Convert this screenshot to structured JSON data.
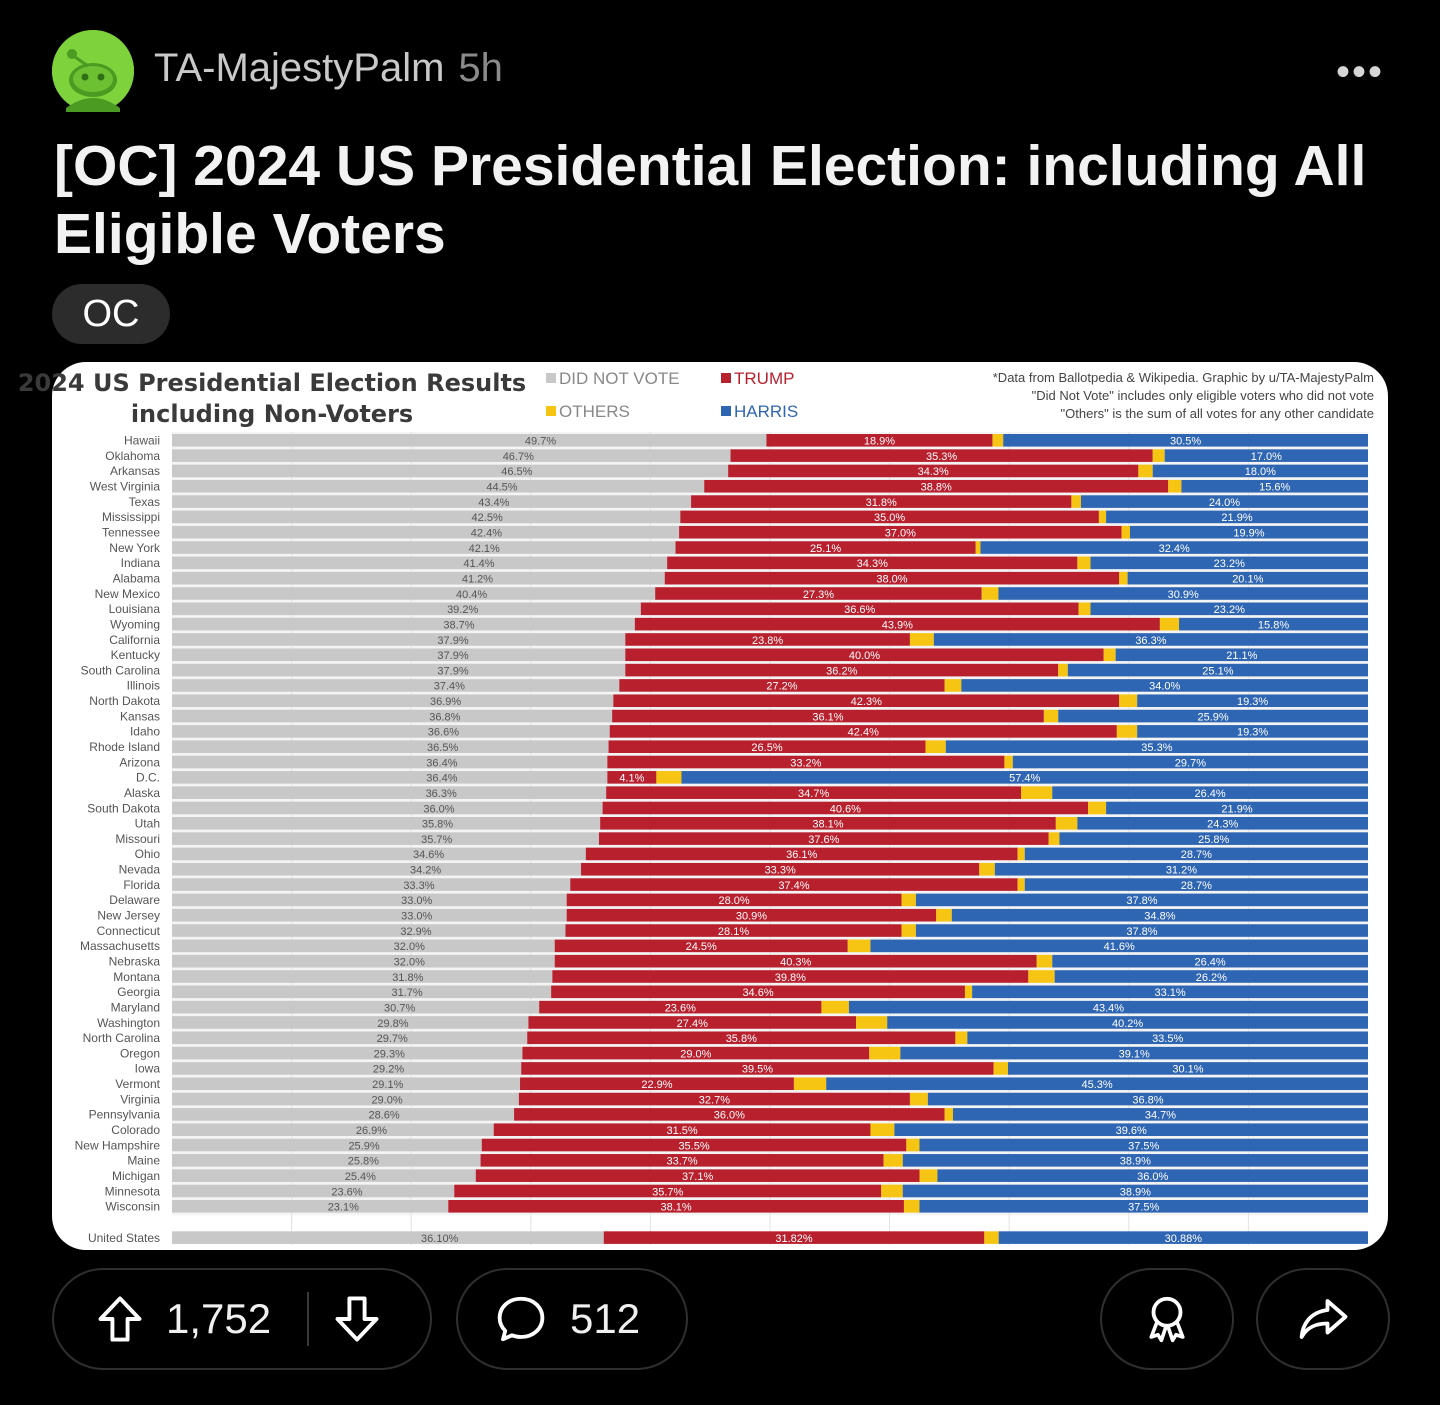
{
  "post": {
    "username": "TA-MajestyPalm",
    "age": "5h",
    "more": "•••",
    "title": "[OC] 2024 US Presidential Election: including All Eligible Voters",
    "flair": "OC"
  },
  "actions": {
    "upvotes": "1,752",
    "comments": "512"
  },
  "colors": {
    "did_not_vote": "#c8c8c8",
    "trump": "#b8202e",
    "others": "#f6c412",
    "harris": "#2f66b3"
  },
  "chart_data": {
    "type": "bar",
    "orientation": "horizontal",
    "stacked": true,
    "title_lines": [
      "2024 US Presidential Election Results",
      "including Non-Voters"
    ],
    "legend": [
      "DID NOT VOTE",
      "TRUMP",
      "OTHERS",
      "HARRIS"
    ],
    "note_lines": [
      "*Data from Ballotpedia & Wikipedia. Graphic by u/TA-MajestyPalm",
      "\"Did Not Vote\" includes only eligible voters who did not vote",
      "\"Others\" is the sum of all votes for any other candidate"
    ],
    "xlim": [
      0,
      100
    ],
    "grid": true,
    "categories": [
      "Hawaii",
      "Oklahoma",
      "Arkansas",
      "West Virginia",
      "Texas",
      "Mississippi",
      "Tennessee",
      "New York",
      "Indiana",
      "Alabama",
      "New Mexico",
      "Louisiana",
      "Wyoming",
      "California",
      "Kentucky",
      "South Carolina",
      "Illinois",
      "North Dakota",
      "Kansas",
      "Idaho",
      "Rhode Island",
      "Arizona",
      "D.C.",
      "Alaska",
      "South Dakota",
      "Utah",
      "Missouri",
      "Ohio",
      "Nevada",
      "Florida",
      "Delaware",
      "New Jersey",
      "Connecticut",
      "Massachusetts",
      "Nebraska",
      "Montana",
      "Georgia",
      "Maryland",
      "Washington",
      "North Carolina",
      "Oregon",
      "Iowa",
      "Vermont",
      "Virginia",
      "Pennsylvania",
      "Colorado",
      "New Hampshire",
      "Maine",
      "Michigan",
      "Minnesota",
      "Wisconsin"
    ],
    "series": [
      {
        "name": "DID NOT VOTE",
        "values": [
          49.7,
          46.7,
          46.5,
          44.5,
          43.4,
          42.5,
          42.4,
          42.1,
          41.4,
          41.2,
          40.4,
          39.2,
          38.7,
          37.9,
          37.9,
          37.9,
          37.4,
          36.9,
          36.8,
          36.6,
          36.5,
          36.4,
          36.4,
          36.3,
          36.0,
          35.8,
          35.7,
          34.6,
          34.2,
          33.3,
          33.0,
          33.0,
          32.9,
          32.0,
          32.0,
          31.8,
          31.7,
          30.7,
          29.8,
          29.7,
          29.3,
          29.2,
          29.1,
          29.0,
          28.6,
          26.9,
          25.9,
          25.8,
          25.4,
          23.6,
          23.1
        ]
      },
      {
        "name": "TRUMP",
        "values": [
          18.9,
          35.3,
          34.3,
          38.8,
          31.8,
          35.0,
          37.0,
          25.1,
          34.3,
          38.0,
          27.3,
          36.6,
          43.9,
          23.8,
          40.0,
          36.2,
          27.2,
          42.3,
          36.1,
          42.4,
          26.5,
          33.2,
          4.1,
          34.7,
          40.6,
          38.1,
          37.6,
          36.1,
          33.3,
          37.4,
          28.0,
          30.9,
          28.1,
          24.5,
          40.3,
          39.8,
          34.6,
          23.6,
          27.4,
          35.8,
          29.0,
          39.5,
          22.9,
          32.7,
          36.0,
          31.5,
          35.5,
          33.7,
          37.1,
          35.7,
          38.1
        ]
      },
      {
        "name": "HARRIS",
        "values": [
          30.5,
          17.0,
          18.0,
          15.6,
          24.0,
          21.9,
          19.9,
          32.4,
          23.2,
          20.1,
          30.9,
          23.2,
          15.8,
          36.3,
          21.1,
          25.1,
          34.0,
          19.3,
          25.9,
          19.3,
          35.3,
          29.7,
          57.4,
          26.4,
          21.9,
          24.3,
          25.8,
          28.7,
          31.2,
          28.7,
          37.8,
          34.8,
          37.8,
          41.6,
          26.4,
          26.2,
          33.1,
          43.4,
          40.2,
          33.5,
          39.1,
          30.1,
          45.3,
          36.8,
          34.7,
          39.6,
          37.5,
          38.9,
          36.0,
          38.9,
          37.5
        ]
      }
    ],
    "labels": {
      "did_not_vote": [
        "49.7%",
        "46.7%",
        "46.5%",
        "44.5%",
        "43.4%",
        "42.5%",
        "42.4%",
        "42.1%",
        "41.4%",
        "41.2%",
        "40.4%",
        "39.2%",
        "38.7%",
        "37.9%",
        "37.9%",
        "37.9%",
        "37.4%",
        "36.9%",
        "36.8%",
        "36.6%",
        "36.5%",
        "36.4%",
        "36.4%",
        "36.3%",
        "36.0%",
        "35.8%",
        "35.7%",
        "34.6%",
        "34.2%",
        "33.3%",
        "33.0%",
        "33.0%",
        "32.9%",
        "32.0%",
        "32.0%",
        "31.8%",
        "31.7%",
        "30.7%",
        "29.8%",
        "29.7%",
        "29.3%",
        "29.2%",
        "29.1%",
        "29.0%",
        "28.6%",
        "26.9%",
        "25.9%",
        "25.8%",
        "25.4%",
        "23.6%",
        "23.1%"
      ],
      "trump": [
        "18.9%",
        "35.3%",
        "34.3%",
        "38.8%",
        "31.8%",
        "35.0%",
        "37.0%",
        "25.1%",
        "34.3%",
        "38.0%",
        "27.3%",
        "36.6%",
        "43.9%",
        "23.8%",
        "40.0%",
        "36.2%",
        "27.2%",
        "42.3%",
        "36.1%",
        "42.4%",
        "26.5%",
        "33.2%",
        "4.1%",
        "34.7%",
        "40.6%",
        "38.1%",
        "37.6%",
        "36.1%",
        "33.3%",
        "37.4%",
        "28.0%",
        "30.9%",
        "28.1%",
        "24.5%",
        "40.3%",
        "39.8%",
        "34.6%",
        "23.6%",
        "27.4%",
        "35.8%",
        "29.0%",
        "39.5%",
        "22.9%",
        "32.7%",
        "36.0%",
        "31.5%",
        "35.5%",
        "33.7%",
        "37.1%",
        "35.7%",
        "38.1%"
      ],
      "harris": [
        "30.5%",
        "17.0%",
        "18.0%",
        "15.6%",
        "24.0%",
        "21.9%",
        "19.9%",
        "32.4%",
        "23.2%",
        "20.1%",
        "30.9%",
        "23.2%",
        "15.8%",
        "36.3%",
        "21.1%",
        "25.1%",
        "34.0%",
        "19.3%",
        "25.9%",
        "19.3%",
        "35.3%",
        "29.7%",
        "57.4%",
        "26.4%",
        "21.9%",
        "24.3%",
        "25.8%",
        "28.7%",
        "31.2%",
        "28.7%",
        "37.8%",
        "34.8%",
        "37.8%",
        "41.6%",
        "26.4%",
        "26.2%",
        "33.1%",
        "43.4%",
        "40.2%",
        "33.5%",
        "39.1%",
        "30.1%",
        "45.3%",
        "36.8%",
        "34.7%",
        "39.6%",
        "37.5%",
        "38.9%",
        "36.0%",
        "38.9%",
        "37.5%"
      ]
    },
    "total": {
      "category": "United States",
      "did_not_vote": 36.1,
      "trump": 31.82,
      "harris": 30.88,
      "labels": [
        "36.10%",
        "31.82%",
        "30.88%"
      ]
    }
  }
}
